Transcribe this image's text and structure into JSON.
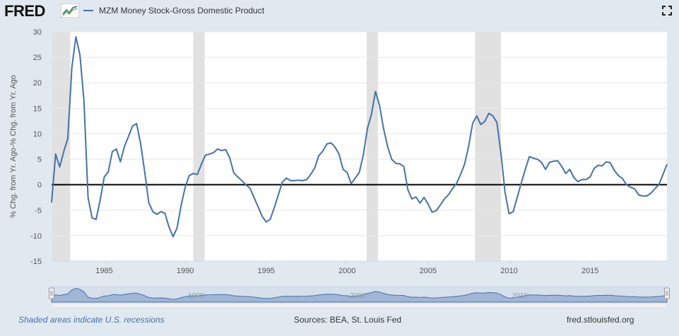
{
  "header": {
    "logo_text": "FRED",
    "legend_label": "MZM Money Stock-Gross Domestic Product",
    "series_color": "#4572a7"
  },
  "footer": {
    "recession_note": "Shaded areas indicate U.S. recessions",
    "sources": "Sources: BEA, St. Louis Fed",
    "site": "fred.stlouisfed.org"
  },
  "navigator": {
    "labels": [
      "1990",
      "2000",
      "2010"
    ]
  },
  "chart_data": {
    "type": "line",
    "ylabel": "% Chg. from Yr. Ago-% Chg. from Yr. Ago",
    "xlim": [
      1981.75,
      2019.75
    ],
    "ylim": [
      -15,
      30
    ],
    "y_ticks": [
      -15,
      -10,
      -5,
      0,
      5,
      10,
      15,
      20,
      25,
      30
    ],
    "x_ticks": [
      1985,
      1990,
      1995,
      2000,
      2005,
      2010,
      2015
    ],
    "grid": true,
    "zero_line": true,
    "recessions": [
      [
        1981.5,
        1982.9
      ],
      [
        1990.5,
        1991.2
      ],
      [
        2001.2,
        2001.9
      ],
      [
        2007.9,
        2009.5
      ]
    ],
    "series": [
      {
        "name": "MZM Money Stock-Gross Domestic Product",
        "points": [
          [
            1981.75,
            -3.5
          ],
          [
            1982.0,
            6.0
          ],
          [
            1982.25,
            3.5
          ],
          [
            1982.5,
            6.5
          ],
          [
            1982.75,
            9.0
          ],
          [
            1983.0,
            23.0
          ],
          [
            1983.25,
            29.0
          ],
          [
            1983.5,
            25.5
          ],
          [
            1983.75,
            16.5
          ],
          [
            1984.0,
            -2.5
          ],
          [
            1984.25,
            -6.5
          ],
          [
            1984.5,
            -6.8
          ],
          [
            1984.75,
            -3.0
          ],
          [
            1985.0,
            1.5
          ],
          [
            1985.25,
            2.5
          ],
          [
            1985.5,
            6.5
          ],
          [
            1985.75,
            7.0
          ],
          [
            1986.0,
            4.5
          ],
          [
            1986.25,
            7.5
          ],
          [
            1986.5,
            9.5
          ],
          [
            1986.75,
            11.5
          ],
          [
            1987.0,
            12.0
          ],
          [
            1987.25,
            8.0
          ],
          [
            1987.5,
            2.5
          ],
          [
            1987.75,
            -3.5
          ],
          [
            1988.0,
            -5.3
          ],
          [
            1988.25,
            -5.8
          ],
          [
            1988.5,
            -5.3
          ],
          [
            1988.75,
            -5.6
          ],
          [
            1989.0,
            -8.3
          ],
          [
            1989.25,
            -10.2
          ],
          [
            1989.5,
            -8.5
          ],
          [
            1989.75,
            -4.0
          ],
          [
            1990.0,
            -0.5
          ],
          [
            1990.25,
            1.8
          ],
          [
            1990.5,
            2.2
          ],
          [
            1990.75,
            2.0
          ],
          [
            1991.0,
            4.0
          ],
          [
            1991.25,
            5.8
          ],
          [
            1991.5,
            6.0
          ],
          [
            1991.75,
            6.3
          ],
          [
            1992.0,
            7.0
          ],
          [
            1992.25,
            6.7
          ],
          [
            1992.5,
            6.9
          ],
          [
            1992.75,
            5.3
          ],
          [
            1993.0,
            2.3
          ],
          [
            1993.25,
            1.5
          ],
          [
            1993.5,
            0.8
          ],
          [
            1993.75,
            0.0
          ],
          [
            1994.0,
            -0.7
          ],
          [
            1994.25,
            -2.5
          ],
          [
            1994.5,
            -4.3
          ],
          [
            1994.75,
            -6.2
          ],
          [
            1995.0,
            -7.3
          ],
          [
            1995.25,
            -6.8
          ],
          [
            1995.5,
            -4.5
          ],
          [
            1995.75,
            -2.0
          ],
          [
            1996.0,
            0.5
          ],
          [
            1996.25,
            1.3
          ],
          [
            1996.5,
            0.8
          ],
          [
            1996.75,
            0.8
          ],
          [
            1997.0,
            0.9
          ],
          [
            1997.25,
            0.8
          ],
          [
            1997.5,
            1.0
          ],
          [
            1997.75,
            2.0
          ],
          [
            1998.0,
            3.3
          ],
          [
            1998.25,
            5.7
          ],
          [
            1998.5,
            6.6
          ],
          [
            1998.75,
            8.0
          ],
          [
            1999.0,
            8.2
          ],
          [
            1999.25,
            7.4
          ],
          [
            1999.5,
            6.0
          ],
          [
            1999.75,
            3.0
          ],
          [
            2000.0,
            2.4
          ],
          [
            2000.25,
            0.2
          ],
          [
            2000.5,
            1.3
          ],
          [
            2000.75,
            2.4
          ],
          [
            2001.0,
            5.8
          ],
          [
            2001.25,
            11.0
          ],
          [
            2001.5,
            13.8
          ],
          [
            2001.75,
            18.3
          ],
          [
            2002.0,
            15.5
          ],
          [
            2002.25,
            11.0
          ],
          [
            2002.5,
            7.5
          ],
          [
            2002.75,
            5.0
          ],
          [
            2003.0,
            4.2
          ],
          [
            2003.25,
            4.1
          ],
          [
            2003.5,
            3.6
          ],
          [
            2003.75,
            -1.0
          ],
          [
            2004.0,
            -2.8
          ],
          [
            2004.25,
            -2.4
          ],
          [
            2004.5,
            -3.6
          ],
          [
            2004.75,
            -2.5
          ],
          [
            2005.0,
            -3.8
          ],
          [
            2005.25,
            -5.4
          ],
          [
            2005.5,
            -5.1
          ],
          [
            2005.75,
            -4.0
          ],
          [
            2006.0,
            -2.8
          ],
          [
            2006.25,
            -2.0
          ],
          [
            2006.5,
            -0.8
          ],
          [
            2006.75,
            0.2
          ],
          [
            2007.0,
            2.0
          ],
          [
            2007.25,
            4.0
          ],
          [
            2007.5,
            7.5
          ],
          [
            2007.75,
            12.0
          ],
          [
            2008.0,
            13.5
          ],
          [
            2008.25,
            11.8
          ],
          [
            2008.5,
            12.4
          ],
          [
            2008.75,
            14.0
          ],
          [
            2009.0,
            13.5
          ],
          [
            2009.25,
            12.2
          ],
          [
            2009.5,
            6.0
          ],
          [
            2009.75,
            -1.5
          ],
          [
            2010.0,
            -5.7
          ],
          [
            2010.25,
            -5.3
          ],
          [
            2010.5,
            -2.5
          ],
          [
            2010.75,
            0.3
          ],
          [
            2011.0,
            3.0
          ],
          [
            2011.25,
            5.5
          ],
          [
            2011.5,
            5.2
          ],
          [
            2011.75,
            5.0
          ],
          [
            2012.0,
            4.4
          ],
          [
            2012.25,
            3.0
          ],
          [
            2012.5,
            4.4
          ],
          [
            2012.75,
            4.6
          ],
          [
            2013.0,
            4.7
          ],
          [
            2013.25,
            3.6
          ],
          [
            2013.5,
            2.2
          ],
          [
            2013.75,
            3.0
          ],
          [
            2014.0,
            1.4
          ],
          [
            2014.25,
            0.6
          ],
          [
            2014.5,
            1.0
          ],
          [
            2014.75,
            1.0
          ],
          [
            2015.0,
            1.5
          ],
          [
            2015.25,
            3.2
          ],
          [
            2015.5,
            3.8
          ],
          [
            2015.75,
            3.7
          ],
          [
            2016.0,
            4.5
          ],
          [
            2016.25,
            4.3
          ],
          [
            2016.5,
            2.8
          ],
          [
            2016.75,
            1.8
          ],
          [
            2017.0,
            1.2
          ],
          [
            2017.25,
            0.0
          ],
          [
            2017.5,
            -0.5
          ],
          [
            2017.75,
            -0.8
          ],
          [
            2018.0,
            -2.0
          ],
          [
            2018.25,
            -2.2
          ],
          [
            2018.5,
            -2.2
          ],
          [
            2018.75,
            -1.7
          ],
          [
            2019.0,
            -0.8
          ],
          [
            2019.25,
            0.0
          ],
          [
            2019.5,
            2.0
          ],
          [
            2019.75,
            4.0
          ]
        ]
      }
    ]
  }
}
